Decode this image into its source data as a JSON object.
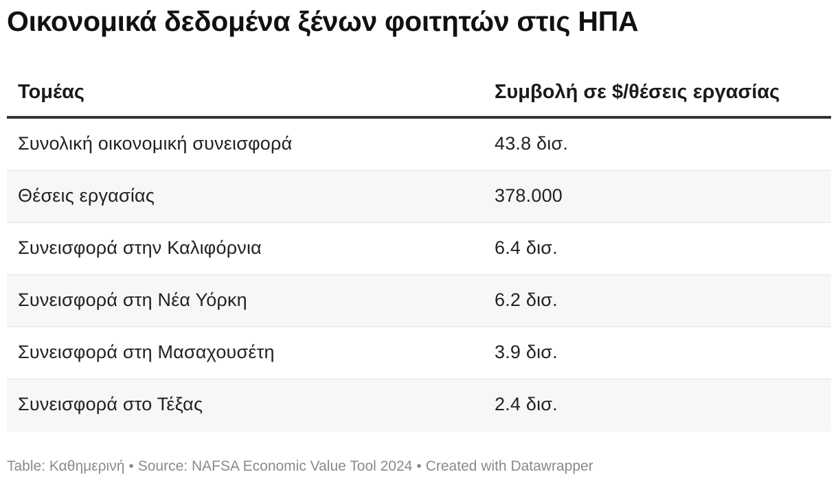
{
  "title": "Οικονομικά δεδομένα ξένων φοιτητών στις ΗΠΑ",
  "table": {
    "headers": [
      "Τομέας",
      "Συμβολή σε $/θέσεις εργασίας"
    ],
    "rows": [
      [
        "Συνολική οικονομική συνεισφορά",
        "43.8 δισ."
      ],
      [
        "Θέσεις εργασίας",
        "378.000"
      ],
      [
        "Συνεισφορά στην Καλιφόρνια",
        "6.4 δισ."
      ],
      [
        "Συνεισφορά στη Νέα Υόρκη",
        "6.2 δισ."
      ],
      [
        "Συνεισφορά στη Μασαχουσέτη",
        "3.9 δισ."
      ],
      [
        "Συνεισφορά στο Τέξας",
        "2.4 δισ."
      ]
    ]
  },
  "footer": {
    "table_credit": "Table: Καθημερινή",
    "separator": "•",
    "source": "Source: NAFSA Economic Value Tool 2024",
    "created_with": "Created with Datawrapper"
  },
  "colors": {
    "header_rule": "#333333",
    "row_alt_background": "#f7f7f7",
    "row_divider": "#e3e3e3",
    "footer_text": "#8a8a8a"
  },
  "chart_data": {
    "type": "table",
    "title": "Οικονομικά δεδομένα ξένων φοιτητών στις ΗΠΑ",
    "columns": [
      "Τομέας",
      "Συμβολή σε $/θέσεις εργασίας"
    ],
    "rows": [
      {
        "Τομέας": "Συνολική οικονομική συνεισφορά",
        "Συμβολή σε $/θέσεις εργασίας": "43.8 δισ."
      },
      {
        "Τομέας": "Θέσεις εργασίας",
        "Συμβολή σε $/θέσεις εργασίας": "378.000"
      },
      {
        "Τομέας": "Συνεισφορά στην Καλιφόρνια",
        "Συμβολή σε $/θέσεις εργασίας": "6.4 δισ."
      },
      {
        "Τομέας": "Συνεισφορά στη Νέα Υόρκη",
        "Συμβολή σε $/θέσεις εργασίας": "6.2 δισ."
      },
      {
        "Τομέας": "Συνεισφορά στη Μασαχουσέτη",
        "Συμβολή σε $/θέσεις εργασίας": "3.9 δισ."
      },
      {
        "Τομέας": "Συνεισφορά στο Τέξας",
        "Συμβολή σε $/θέσεις εργασίας": "2.4 δισ."
      }
    ]
  }
}
